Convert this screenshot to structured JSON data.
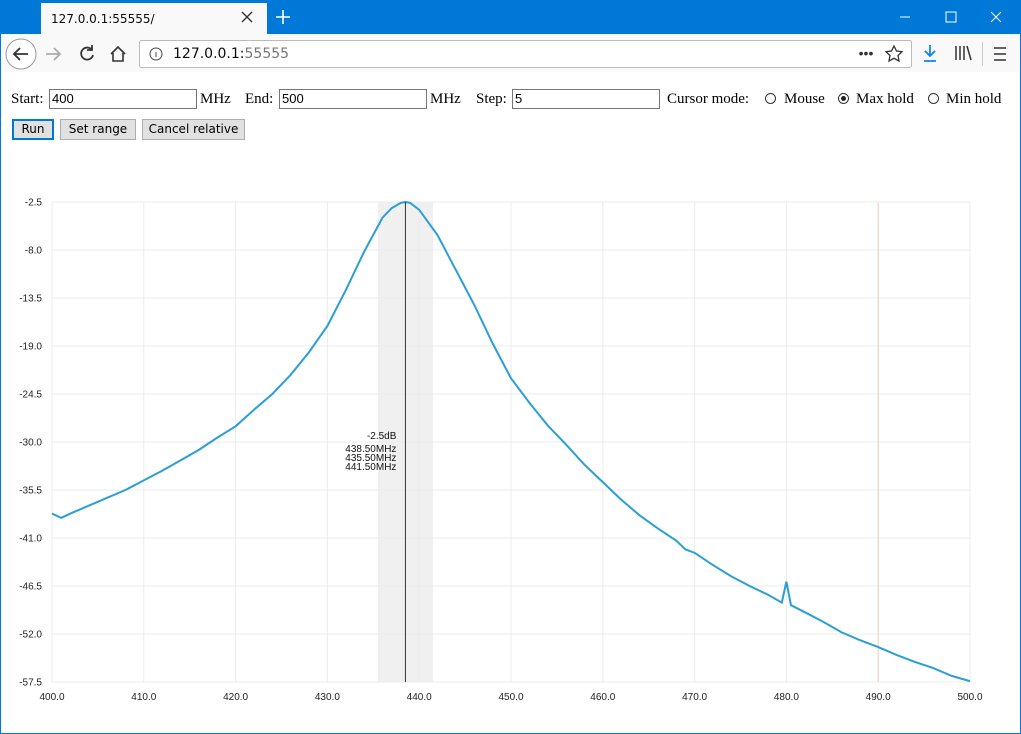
{
  "browser": {
    "tab_title": "127.0.0.1:55555/",
    "url_host": "127.0.0.1:",
    "url_port": "55555"
  },
  "form": {
    "start_label": "Start:",
    "start_value": "400",
    "start_unit": "MHz",
    "end_label": "End:",
    "end_value": "500",
    "end_unit": "MHz",
    "step_label": "Step:",
    "step_value": "5",
    "cursor_mode_label": "Cursor mode:",
    "cursor_modes": [
      "Mouse",
      "Max hold",
      "Min hold"
    ],
    "cursor_mode_selected": "Max hold",
    "buttons": [
      "Run",
      "Set range",
      "Cancel relative"
    ]
  },
  "chart_data": {
    "type": "line",
    "color": "#2b9fd5",
    "grid": true,
    "x": [
      400,
      401,
      402,
      404,
      406,
      408,
      410,
      412,
      414,
      416,
      418,
      420,
      422,
      424,
      426,
      428,
      430,
      432,
      434,
      436,
      437,
      438,
      438.5,
      439,
      440,
      442,
      444,
      446,
      448,
      450,
      452,
      454,
      456,
      458,
      460,
      462,
      464,
      466,
      468,
      469,
      470,
      472,
      474,
      476,
      478,
      479.5,
      480,
      480.5,
      482,
      484,
      486,
      488,
      490,
      492,
      494,
      496,
      498,
      500
    ],
    "values": [
      -38.2,
      -38.7,
      -38.2,
      -37.3,
      -36.4,
      -35.5,
      -34.4,
      -33.3,
      -32.1,
      -30.9,
      -29.5,
      -28.2,
      -26.3,
      -24.5,
      -22.3,
      -19.7,
      -16.7,
      -12.6,
      -8.2,
      -4.3,
      -3.2,
      -2.6,
      -2.5,
      -2.6,
      -3.4,
      -6.3,
      -10.3,
      -14.3,
      -18.7,
      -22.7,
      -25.5,
      -28.1,
      -30.3,
      -32.6,
      -34.6,
      -36.6,
      -38.4,
      -39.9,
      -41.3,
      -42.3,
      -42.7,
      -44.1,
      -45.4,
      -46.5,
      -47.5,
      -48.4,
      -46.0,
      -48.7,
      -49.5,
      -50.6,
      -51.8,
      -52.7,
      -53.5,
      -54.4,
      -55.2,
      -55.9,
      -56.8,
      -57.4
    ],
    "xlim": [
      400,
      500
    ],
    "xticks": [
      {
        "value": 400,
        "label": "400.0"
      },
      {
        "value": 410,
        "label": "410.0"
      },
      {
        "value": 420,
        "label": "420.0"
      },
      {
        "value": 430,
        "label": "430.0"
      },
      {
        "value": 440,
        "label": "440.0"
      },
      {
        "value": 450,
        "label": "450.0"
      },
      {
        "value": 460,
        "label": "460.0"
      },
      {
        "value": 470,
        "label": "470.0"
      },
      {
        "value": 480,
        "label": "480.0"
      },
      {
        "value": 490,
        "label": "490.0"
      },
      {
        "value": 500,
        "label": "500.0"
      }
    ],
    "ylim": [
      -57.5,
      -2.5
    ],
    "yticks": [
      -2.5,
      {
        "value": -8,
        "label": "-8.0"
      },
      -13.5,
      {
        "value": -19,
        "label": "-19.0"
      },
      -24.5,
      {
        "value": -30,
        "label": "-30.0"
      },
      -35.5,
      {
        "value": -41,
        "label": "-41.0"
      },
      -46.5,
      {
        "value": -52,
        "label": "-52.0"
      },
      -57.5
    ],
    "cursor": {
      "x": 438.5,
      "x_label": "438.50MHz",
      "y": -2.5,
      "y_label": "-2.5dB"
    },
    "band": {
      "x": [
        435.5,
        441.5
      ],
      "labels": [
        "435.50MHz",
        "441.50MHz"
      ]
    },
    "marker_x": 490,
    "marker_color": "#f6d2b4"
  }
}
